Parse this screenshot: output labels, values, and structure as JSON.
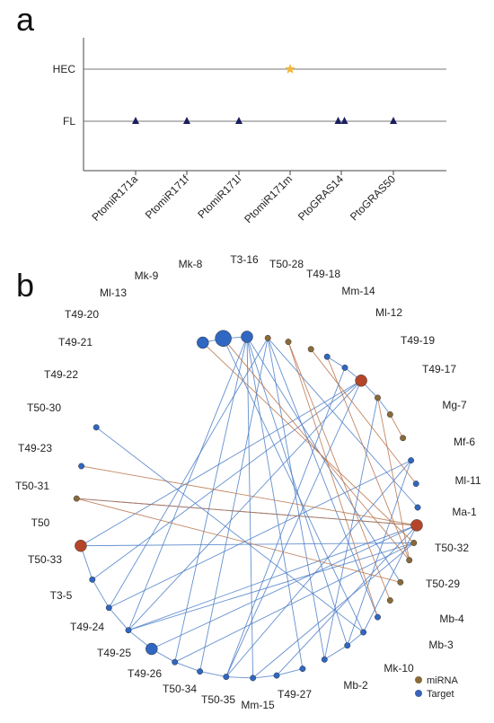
{
  "panel_a": {
    "letter": "a",
    "rows": [
      "HEC",
      "FL"
    ],
    "columns": [
      "PtomiR171a",
      "PtomiR171f",
      "PtomiR171l",
      "PtomiR171m",
      "PtoGRAS14",
      "PtoGRAS50"
    ],
    "marks": [
      {
        "row": "FL",
        "column": "PtomiR171a",
        "shape": "triangle",
        "color": "#1a1f5e"
      },
      {
        "row": "FL",
        "column": "PtomiR171f",
        "shape": "triangle",
        "color": "#1a1f5e"
      },
      {
        "row": "FL",
        "column": "PtomiR171l",
        "shape": "triangle",
        "color": "#1a1f5e"
      },
      {
        "row": "FL",
        "column": "PtoGRAS14",
        "shape": "triangle",
        "color": "#1a1f5e",
        "count": 2
      },
      {
        "row": "FL",
        "column": "PtoGRAS50",
        "shape": "triangle",
        "color": "#1a1f5e"
      },
      {
        "row": "HEC",
        "column": "PtomiR171m",
        "shape": "star",
        "color": "#f2b63a"
      }
    ]
  },
  "panel_b": {
    "letter": "b",
    "legend": [
      {
        "label": "miRNA",
        "color": "#8a6a3a"
      },
      {
        "label": "Target",
        "color": "#3a63b8"
      }
    ],
    "colors": {
      "mirna_edge": "#b8734a",
      "target_edge": "#4a7cc7",
      "target_node": "#2f67c2",
      "mirna_node": "#8a6a3a",
      "large_mirna": "#b5452a"
    },
    "labels": [
      "T3-16",
      "T50-28",
      "T49-18",
      "Mm-14",
      "Ml-12",
      "T49-19",
      "T49-17",
      "Mg-7",
      "Mf-6",
      "Ml-11",
      "Ma-1",
      "T50-32",
      "T50-29",
      "Mb-4",
      "Mb-3",
      "Mk-10",
      "Mb-2",
      "T49-27",
      "Mm-15",
      "T50-35",
      "T50-34",
      "T49-26",
      "T49-25",
      "T49-24",
      "T3-5",
      "T50-33",
      "T50",
      "T50-31",
      "T49-23",
      "T50-30",
      "T49-22",
      "T49-21",
      "T49-20",
      "Ml-13",
      "Mk-9",
      "Mk-8"
    ],
    "nodes": [
      {
        "id": "n1",
        "type": "target",
        "size": 3
      },
      {
        "id": "n2",
        "type": "target",
        "size": 4
      },
      {
        "id": "n3",
        "type": "target",
        "size": 3
      },
      {
        "id": "n4",
        "type": "mirna",
        "size": 2
      },
      {
        "id": "n5",
        "type": "mirna",
        "size": 2
      },
      {
        "id": "n6",
        "type": "mirna",
        "size": 2
      },
      {
        "id": "n7",
        "type": "target",
        "size": 2
      },
      {
        "id": "n8",
        "type": "target",
        "size": 2
      },
      {
        "id": "n9",
        "type": "mirna_large",
        "size": 3
      },
      {
        "id": "n10",
        "type": "mirna",
        "size": 2
      },
      {
        "id": "n11",
        "type": "mirna",
        "size": 2
      },
      {
        "id": "n12",
        "type": "mirna",
        "size": 2
      },
      {
        "id": "n13",
        "type": "target",
        "size": 2
      },
      {
        "id": "n14",
        "type": "target",
        "size": 2
      },
      {
        "id": "n15",
        "type": "target",
        "size": 2
      },
      {
        "id": "n16",
        "type": "mirna_large",
        "size": 3
      },
      {
        "id": "n17",
        "type": "mirna",
        "size": 2
      },
      {
        "id": "n18",
        "type": "mirna",
        "size": 2
      },
      {
        "id": "n19",
        "type": "mirna",
        "size": 2
      },
      {
        "id": "n20",
        "type": "mirna",
        "size": 2
      },
      {
        "id": "n21",
        "type": "target",
        "size": 2
      },
      {
        "id": "n22",
        "type": "target",
        "size": 2
      },
      {
        "id": "n23",
        "type": "target",
        "size": 2
      },
      {
        "id": "n24",
        "type": "target",
        "size": 2
      },
      {
        "id": "n25",
        "type": "target",
        "size": 2
      },
      {
        "id": "n26",
        "type": "target",
        "size": 2
      },
      {
        "id": "n27",
        "type": "target",
        "size": 2
      },
      {
        "id": "n28",
        "type": "target",
        "size": 2
      },
      {
        "id": "n29",
        "type": "target",
        "size": 2
      },
      {
        "id": "n30",
        "type": "target",
        "size": 2
      },
      {
        "id": "n31",
        "type": "target",
        "size": 3
      },
      {
        "id": "n32",
        "type": "target",
        "size": 2
      },
      {
        "id": "n33",
        "type": "target",
        "size": 2
      },
      {
        "id": "n34",
        "type": "target",
        "size": 2
      },
      {
        "id": "n35",
        "type": "mirna_large",
        "size": 3
      },
      {
        "id": "n36",
        "type": "mirna",
        "size": 2
      },
      {
        "id": "n37",
        "type": "target",
        "size": 2
      },
      {
        "id": "n38",
        "type": "target",
        "size": 2
      }
    ]
  }
}
